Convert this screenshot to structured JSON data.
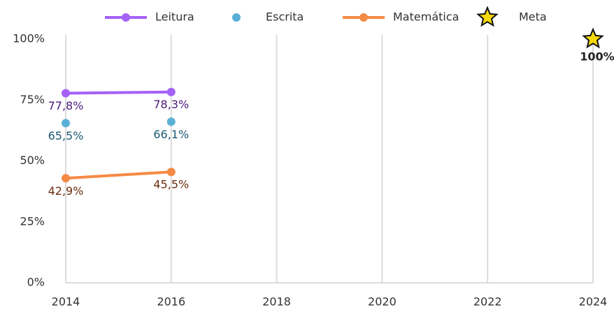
{
  "chart_data": {
    "type": "line",
    "xlim": [
      2014,
      2024
    ],
    "xticks": [
      2014,
      2016,
      2018,
      2020,
      2022,
      2024
    ],
    "ylim": [
      0,
      100
    ],
    "yticks": [
      {
        "value": 0,
        "label": "0%"
      },
      {
        "value": 25,
        "label": "25%"
      },
      {
        "value": 50,
        "label": "50%"
      },
      {
        "value": 75,
        "label": "75%"
      },
      {
        "value": 100,
        "label": "100%"
      }
    ],
    "grid": true,
    "legend": "top",
    "series": [
      {
        "name": "Leitura",
        "mode": "lines+markers",
        "color": "#a461f5",
        "label_color": "#4b1c7a",
        "x": [
          2014,
          2016
        ],
        "values": [
          77.8,
          78.3
        ],
        "value_labels": [
          "77,8%",
          "78,3%"
        ]
      },
      {
        "name": "Escrita",
        "mode": "markers",
        "color": "#5bafd6",
        "label_color": "#1d5a73",
        "x": [
          2014,
          2016
        ],
        "values": [
          65.5,
          66.1
        ],
        "value_labels": [
          "65,5%",
          "66,1%"
        ]
      },
      {
        "name": "Matemática",
        "mode": "lines+markers",
        "color": "#f58a45",
        "label_color": "#6b2e0f",
        "x": [
          2014,
          2016
        ],
        "values": [
          42.9,
          45.5
        ],
        "value_labels": [
          "42,9%",
          "45,5%"
        ]
      },
      {
        "name": "Meta",
        "mode": "star",
        "color": "#f5d90a",
        "label_color": "#222222",
        "x": [
          2024
        ],
        "values": [
          100
        ],
        "value_labels": [
          "100%"
        ]
      }
    ]
  }
}
